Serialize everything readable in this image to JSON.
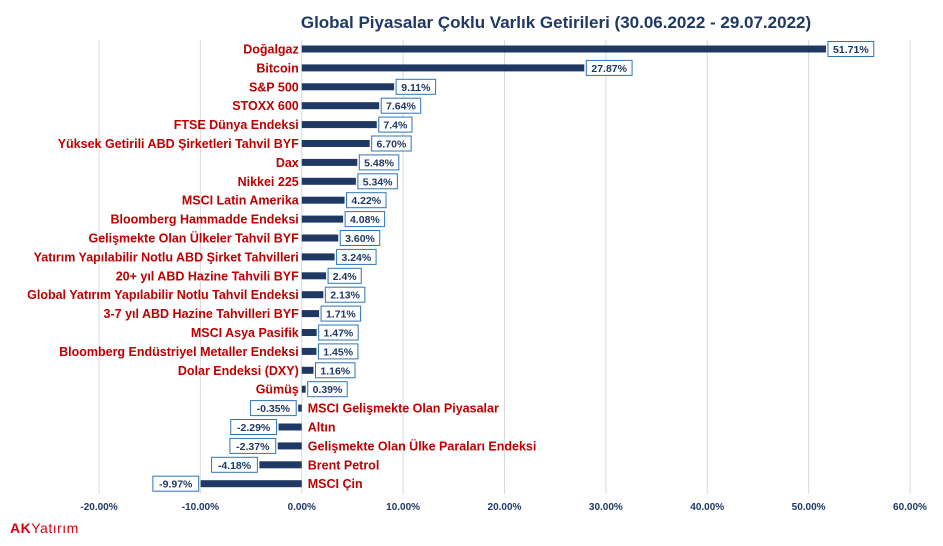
{
  "chart_data": {
    "type": "bar",
    "orientation": "horizontal",
    "title": "Global Piyasalar Çoklu Varlık Getirileri (30.06.2022 - 29.07.2022)",
    "categories": [
      "Doğalgaz",
      "Bitcoin",
      "S&P 500",
      "STOXX 600",
      "FTSE Dünya Endeksi",
      "Yüksek Getirili ABD Şirketleri Tahvil BYF",
      "Dax",
      "Nikkei 225",
      "MSCI Latin Amerika",
      "Bloomberg Hammadde Endeksi",
      "Gelişmekte Olan Ülkeler Tahvil BYF",
      "Yatırım Yapılabilir Notlu  ABD Şirket Tahvilleri",
      "20+ yıl ABD Hazine Tahvili BYF",
      "Global Yatırım Yapılabilir Notlu Tahvil Endeksi",
      "3-7 yıl ABD Hazine Tahvilleri BYF",
      "MSCI Asya Pasifik",
      "Bloomberg Endüstriyel Metaller Endeksi",
      "Dolar Endeksi (DXY)",
      "Gümüş",
      "MSCI Gelişmekte Olan Piyasalar",
      "Altın",
      "Gelişmekte Olan Ülke Paraları Endeksi",
      "Brent Petrol",
      "MSCI Çin"
    ],
    "values": [
      51.71,
      27.87,
      9.11,
      7.64,
      7.4,
      6.7,
      5.48,
      5.34,
      4.22,
      4.08,
      3.6,
      3.24,
      2.4,
      2.13,
      1.71,
      1.47,
      1.45,
      1.16,
      0.39,
      -0.35,
      -2.29,
      -2.37,
      -4.18,
      -9.97
    ],
    "value_labels": [
      "51.71%",
      "27.87%",
      "9.11%",
      "7.64%",
      "7.4%",
      "6.70%",
      "5.48%",
      "5.34%",
      "4.22%",
      "4.08%",
      "3.60%",
      "3.24%",
      "2.4%",
      "2.13%",
      "1.71%",
      "1.47%",
      "1.45%",
      "1.16%",
      "0.39%",
      "-0.35%",
      "-2.29%",
      "-2.37%",
      "-4.18%",
      "-9.97%"
    ],
    "x_ticks": [
      "-20.00%",
      "-10.00%",
      "0.00%",
      "10.00%",
      "20.00%",
      "30.00%",
      "40.00%",
      "50.00%",
      "60.00%"
    ],
    "xlim": [
      -20,
      60
    ],
    "xlabel": "",
    "ylabel": "",
    "grid": "vertical",
    "legend": "none",
    "colors": {
      "bar": "#1f3864",
      "category_text": "#c00000",
      "title_text": "#1f3864",
      "label_border": "#2e75b6",
      "grid": "#d9d9d9"
    }
  },
  "brand": {
    "logo_text_1": "AK",
    "logo_text_2": "Yatırım"
  }
}
